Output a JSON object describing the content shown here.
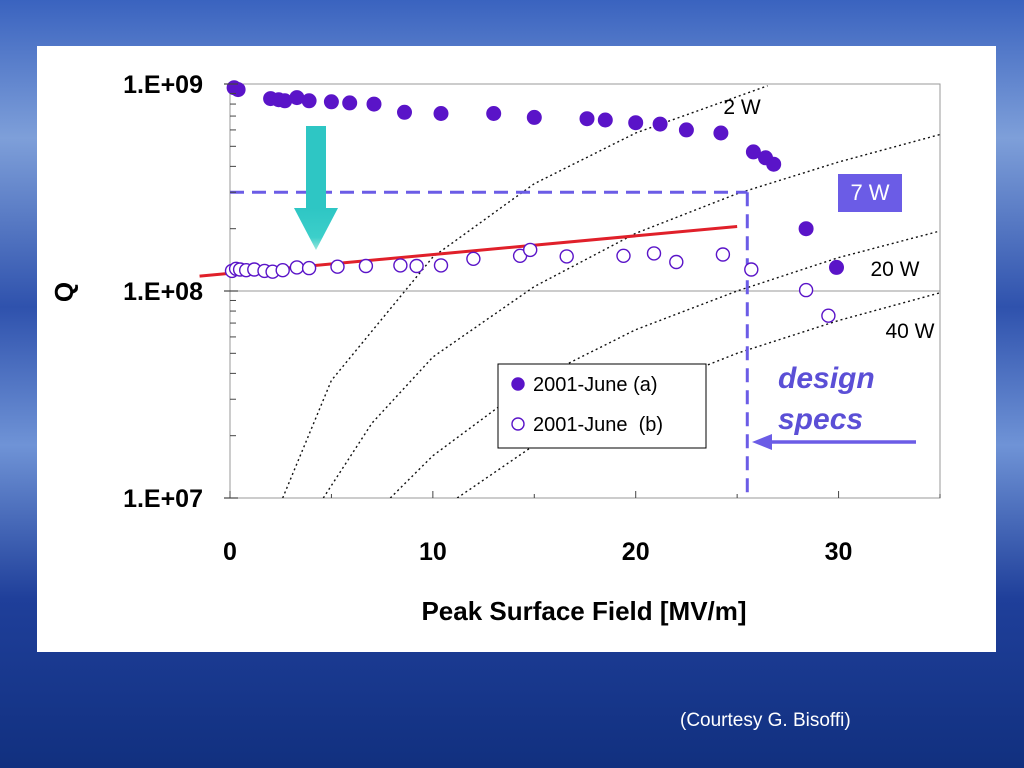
{
  "credit": "(Courtesy G. Bisoffi)",
  "chart_data": {
    "type": "scatter",
    "xlabel": "Peak Surface Field [MV/m]",
    "ylabel": "Q",
    "xlim": [
      0,
      35
    ],
    "ylim": [
      10000000,
      1000000000
    ],
    "yscale": "log",
    "x_ticks": [
      "0",
      "10",
      "20",
      "30"
    ],
    "y_ticks": [
      "1.E+07",
      "1.E+08",
      "1.E+09"
    ],
    "grid": "horizontal at decades",
    "legend_position": "center",
    "series": [
      {
        "name": "2001-June (a)",
        "marker": "filled-circle",
        "color": "#5a14c8",
        "points": [
          [
            0.2,
            960000000
          ],
          [
            0.4,
            940000000
          ],
          [
            2.0,
            850000000
          ],
          [
            2.4,
            840000000
          ],
          [
            2.7,
            830000000
          ],
          [
            3.3,
            860000000
          ],
          [
            3.9,
            830000000
          ],
          [
            5.0,
            820000000
          ],
          [
            5.9,
            810000000
          ],
          [
            7.1,
            800000000
          ],
          [
            8.6,
            730000000
          ],
          [
            10.4,
            720000000
          ],
          [
            13.0,
            720000000
          ],
          [
            15.0,
            690000000
          ],
          [
            17.6,
            680000000
          ],
          [
            18.5,
            670000000
          ],
          [
            20.0,
            650000000
          ],
          [
            21.2,
            640000000
          ],
          [
            22.5,
            600000000
          ],
          [
            24.2,
            580000000
          ],
          [
            25.8,
            470000000
          ],
          [
            26.4,
            440000000
          ],
          [
            26.8,
            410000000
          ],
          [
            28.4,
            200000000
          ],
          [
            29.9,
            130000000
          ]
        ]
      },
      {
        "name": "2001-June  (b)",
        "marker": "open-circle",
        "color": "#5a14c8",
        "points": [
          [
            0.1,
            125000000
          ],
          [
            0.3,
            128000000
          ],
          [
            0.5,
            127000000
          ],
          [
            0.8,
            126000000
          ],
          [
            1.2,
            127000000
          ],
          [
            1.7,
            125000000
          ],
          [
            2.1,
            124000000
          ],
          [
            2.6,
            126000000
          ],
          [
            3.3,
            130000000
          ],
          [
            3.9,
            129000000
          ],
          [
            5.3,
            131000000
          ],
          [
            6.7,
            132000000
          ],
          [
            8.4,
            133000000
          ],
          [
            9.2,
            132000000
          ],
          [
            10.4,
            133000000
          ],
          [
            12.0,
            143000000
          ],
          [
            14.3,
            148000000
          ],
          [
            14.8,
            158000000
          ],
          [
            16.6,
            147000000
          ],
          [
            19.4,
            148000000
          ],
          [
            20.9,
            152000000
          ],
          [
            22.0,
            138000000
          ],
          [
            24.3,
            150000000
          ],
          [
            25.7,
            127000000
          ],
          [
            28.4,
            101000000
          ],
          [
            29.5,
            76000000
          ]
        ]
      }
    ],
    "fit_line": {
      "color": "#e0202a",
      "points": [
        [
          -1.5,
          118000000
        ],
        [
          25,
          205000000
        ]
      ]
    },
    "power_curves": [
      {
        "label": "2 W",
        "points": [
          [
            2.6,
            10000000
          ],
          [
            5,
            37000000
          ],
          [
            10,
            146000000
          ],
          [
            15,
            330000000
          ],
          [
            20,
            580000000
          ],
          [
            26.5,
            980000000
          ]
        ]
      },
      {
        "label": "7 W",
        "points": [
          [
            4.6,
            10000000
          ],
          [
            7,
            23000000
          ],
          [
            10,
            48000000
          ],
          [
            15,
            105000000
          ],
          [
            20,
            190000000
          ],
          [
            25,
            295000000
          ],
          [
            30,
            420000000
          ],
          [
            35,
            570000000
          ]
        ]
      },
      {
        "label": "20 W",
        "points": [
          [
            7.9,
            10000000
          ],
          [
            10,
            16000000
          ],
          [
            15,
            37000000
          ],
          [
            20,
            65000000
          ],
          [
            25,
            100000000
          ],
          [
            30,
            145000000
          ],
          [
            35,
            195000000
          ]
        ]
      },
      {
        "label": "40 W",
        "points": [
          [
            11.2,
            10000000
          ],
          [
            15,
            18000000
          ],
          [
            20,
            32000000
          ],
          [
            25,
            50000000
          ],
          [
            30,
            72000000
          ],
          [
            35,
            98000000
          ]
        ]
      }
    ],
    "annotations": {
      "design_field": 25.5,
      "design_q": 300000000,
      "design_label_line1": "design",
      "design_label_line2": "specs"
    }
  }
}
